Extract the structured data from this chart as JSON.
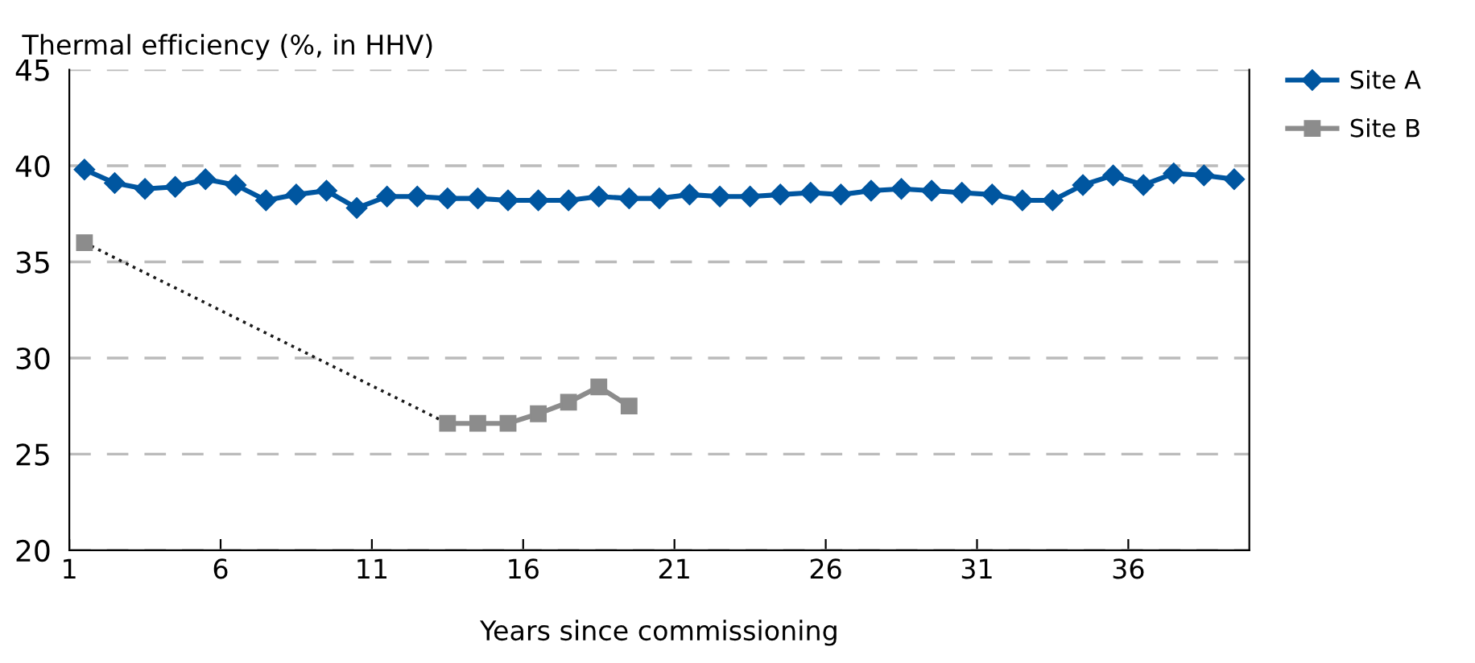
{
  "chart_data": {
    "type": "line",
    "ylabel": "Thermal efficiency (%, in HHV)",
    "xlabel": "Years since commissioning",
    "xlim": [
      1,
      40
    ],
    "xticks": [
      1,
      6,
      11,
      16,
      21,
      26,
      31,
      36
    ],
    "ylim": [
      20,
      45
    ],
    "yticks": [
      20,
      25,
      30,
      35,
      40,
      45
    ],
    "grid": "y",
    "legend": "top right",
    "series": [
      {
        "name": "Site A",
        "color": "#0056a0",
        "marker": "diamond",
        "x": [
          1.5,
          2.5,
          3.5,
          4.5,
          5.5,
          6.5,
          7.5,
          8.5,
          9.5,
          10.5,
          11.5,
          12.5,
          13.5,
          14.5,
          15.5,
          16.5,
          17.5,
          18.5,
          19.5,
          20.5,
          21.5,
          22.5,
          23.5,
          24.5,
          25.5,
          26.5,
          27.5,
          28.5,
          29.5,
          30.5,
          31.5,
          32.5,
          33.5,
          34.5,
          35.5,
          36.5,
          37.5,
          38.5,
          39.5
        ],
        "values": [
          39.8,
          39.1,
          38.8,
          38.9,
          39.3,
          39.0,
          38.2,
          38.5,
          38.7,
          37.8,
          38.4,
          38.4,
          38.3,
          38.3,
          38.2,
          38.2,
          38.2,
          38.4,
          38.3,
          38.3,
          38.5,
          38.4,
          38.4,
          38.5,
          38.6,
          38.5,
          38.7,
          38.8,
          38.7,
          38.6,
          38.5,
          38.2,
          38.2,
          39.0,
          39.5,
          39.0,
          39.6,
          39.5,
          39.3
        ]
      },
      {
        "name": "Site B",
        "color": "#8c8c8c",
        "marker": "square",
        "x": [
          1.5,
          2.5,
          3.5,
          4.5,
          5.5,
          6.5,
          7.5,
          8.5,
          9.5,
          10.5,
          11.5,
          12.5,
          13.5,
          14.5,
          15.5,
          16.5,
          17.5,
          18.5,
          19.5
        ],
        "values": [
          36.0,
          null,
          null,
          null,
          null,
          null,
          null,
          null,
          null,
          null,
          null,
          null,
          26.6,
          26.6,
          26.6,
          27.1,
          27.7,
          28.5,
          27.5
        ]
      },
      {
        "color": "#1a1a1a",
        "marker": "none",
        "line_style": "dotted",
        "x": [
          1.5,
          13.5
        ],
        "values": [
          36.0,
          26.6
        ]
      }
    ]
  }
}
